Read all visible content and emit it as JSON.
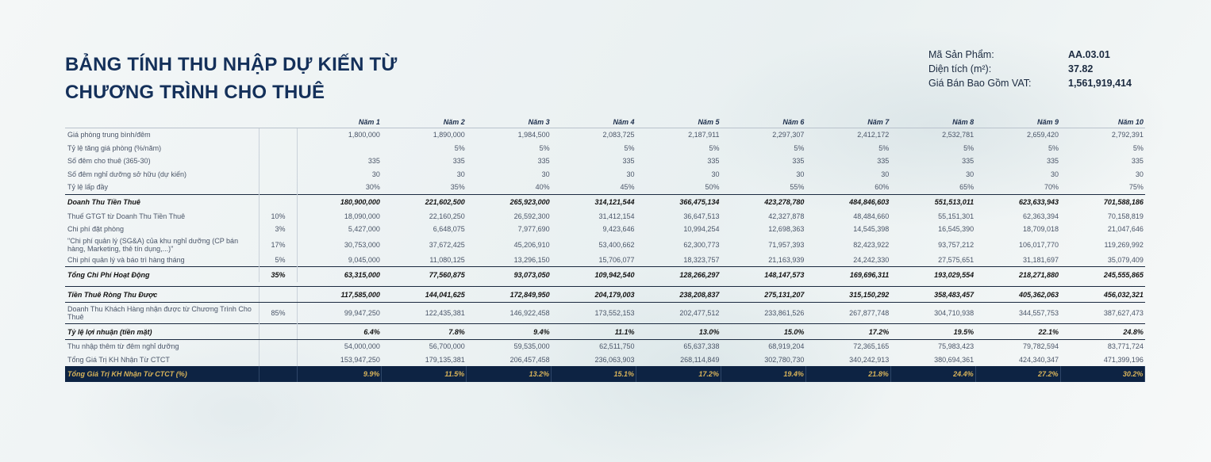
{
  "title": {
    "line1": "BẢNG TÍNH THU NHẬP DỰ KIẾN  TỪ",
    "line2": "CHƯƠNG TRÌNH CHO THUÊ"
  },
  "product_info": [
    {
      "label": "Mã Sản Phẩm:",
      "value": "AA.03.01"
    },
    {
      "label": "Diện tích (m²):",
      "value": "37.82"
    },
    {
      "label": "Giá Bán Bao Gồm VAT:",
      "value": "1,561,919,414"
    }
  ],
  "table": {
    "headers": [
      "Năm 1",
      "Năm 2",
      "Năm 3",
      "Năm 4",
      "Năm 5",
      "Năm 6",
      "Năm 7",
      "Năm 8",
      "Năm 9",
      "Năm 10"
    ],
    "rows": [
      {
        "label": "Giá phòng trung bình/đêm",
        "pct": "",
        "values": [
          "1,800,000",
          "1,890,000",
          "1,984,500",
          "2,083,725",
          "2,187,911",
          "2,297,307",
          "2,412,172",
          "2,532,781",
          "2,659,420",
          "2,792,391"
        ],
        "type": "r"
      },
      {
        "label": "Tỷ lệ tăng giá phòng (%/năm)",
        "pct": "",
        "values": [
          "",
          "5%",
          "5%",
          "5%",
          "5%",
          "5%",
          "5%",
          "5%",
          "5%",
          "5%"
        ],
        "type": "r"
      },
      {
        "label": "Số đêm cho thuê (365-30)",
        "pct": "",
        "values": [
          "335",
          "335",
          "335",
          "335",
          "335",
          "335",
          "335",
          "335",
          "335",
          "335"
        ],
        "type": "r"
      },
      {
        "label": "Số đêm nghỉ dưỡng sở hữu (dự kiến)",
        "pct": "",
        "values": [
          "30",
          "30",
          "30",
          "30",
          "30",
          "30",
          "30",
          "30",
          "30",
          "30"
        ],
        "type": "r"
      },
      {
        "label": "Tỷ lệ lấp đầy",
        "pct": "",
        "values": [
          "30%",
          "35%",
          "40%",
          "45%",
          "50%",
          "55%",
          "60%",
          "65%",
          "70%",
          "75%"
        ],
        "type": "r"
      },
      {
        "label": "Doanh Thu Tiền Thuê",
        "pct": "",
        "values": [
          "180,900,000",
          "221,602,500",
          "265,923,000",
          "314,121,544",
          "366,475,134",
          "423,278,780",
          "484,846,603",
          "551,513,011",
          "623,633,943",
          "701,588,186"
        ],
        "type": "tot"
      },
      {
        "label": "Thuế GTGT từ Doanh Thu Tiền Thuê",
        "pct": "10%",
        "values": [
          "18,090,000",
          "22,160,250",
          "26,592,300",
          "31,412,154",
          "36,647,513",
          "42,327,878",
          "48,484,660",
          "55,151,301",
          "62,363,394",
          "70,158,819"
        ],
        "type": "r"
      },
      {
        "label": "Chi phí đặt phòng",
        "pct": "3%",
        "values": [
          "5,427,000",
          "6,648,075",
          "7,977,690",
          "9,423,646",
          "10,994,254",
          "12,698,363",
          "14,545,398",
          "16,545,390",
          "18,709,018",
          "21,047,646"
        ],
        "type": "r"
      },
      {
        "label": "\"Chi phí quản lý (SG&A) của khu nghỉ dưỡng (CP bán hàng, Marketing, thẻ tín dụng,...)\"",
        "pct": "17%",
        "values": [
          "30,753,000",
          "37,672,425",
          "45,206,910",
          "53,400,662",
          "62,300,773",
          "71,957,393",
          "82,423,922",
          "93,757,212",
          "106,017,770",
          "119,269,992"
        ],
        "type": "r2"
      },
      {
        "label": "Chi phí quản lý và báo trì hàng tháng",
        "pct": "5%",
        "values": [
          "9,045,000",
          "11,080,125",
          "13,296,150",
          "15,706,077",
          "18,323,757",
          "21,163,939",
          "24,242,330",
          "27,575,651",
          "31,181,697",
          "35,079,409"
        ],
        "type": "r"
      },
      {
        "label": "Tổng Chi Phí Hoạt Động",
        "pct": "35%",
        "values": [
          "63,315,000",
          "77,560,875",
          "93,073,050",
          "109,942,540",
          "128,266,297",
          "148,147,573",
          "169,696,311",
          "193,029,554",
          "218,271,880",
          "245,555,865"
        ],
        "type": "tot"
      },
      {
        "label": "Tiền Thuê Ròng Thu Được",
        "pct": "",
        "values": [
          "117,585,000",
          "144,041,625",
          "172,849,950",
          "204,179,003",
          "238,208,837",
          "275,131,207",
          "315,150,292",
          "358,483,457",
          "405,362,063",
          "456,032,321"
        ],
        "type": "tot2"
      },
      {
        "label": "Doanh Thu Khách Hàng nhận được từ Chương Trình Cho Thuê",
        "pct": "85%",
        "values": [
          "99,947,250",
          "122,435,381",
          "146,922,458",
          "173,552,153",
          "202,477,512",
          "233,861,526",
          "267,877,748",
          "304,710,938",
          "344,557,753",
          "387,627,473"
        ],
        "type": "r3"
      },
      {
        "label": "Tỷ lệ lợi nhuận (tiền mặt)",
        "pct": "",
        "values": [
          "6.4%",
          "7.8%",
          "9.4%",
          "11.1%",
          "13.0%",
          "15.0%",
          "17.2%",
          "19.5%",
          "22.1%",
          "24.8%"
        ],
        "type": "tot2"
      },
      {
        "label": "Thu nhập thêm từ đêm nghỉ dưỡng",
        "pct": "",
        "values": [
          "54,000,000",
          "56,700,000",
          "59,535,000",
          "62,511,750",
          "65,637,338",
          "68,919,204",
          "72,365,165",
          "75,983,423",
          "79,782,594",
          "83,771,724"
        ],
        "type": "r"
      },
      {
        "label": "Tổng Giá Trị KH Nhận Từ CTCT",
        "pct": "",
        "values": [
          "153,947,250",
          "179,135,381",
          "206,457,458",
          "236,063,903",
          "268,114,849",
          "302,780,730",
          "340,242,913",
          "380,694,361",
          "424,340,347",
          "471,399,196"
        ],
        "type": "r"
      },
      {
        "label": "Tổng Giá Trị KH Nhận Từ CTCT (%)",
        "pct": "",
        "values": [
          "9.9%",
          "11.5%",
          "13.2%",
          "15.1%",
          "17.2%",
          "19.4%",
          "21.8%",
          "24.4%",
          "27.2%",
          "30.2%"
        ],
        "type": "foot"
      }
    ]
  }
}
